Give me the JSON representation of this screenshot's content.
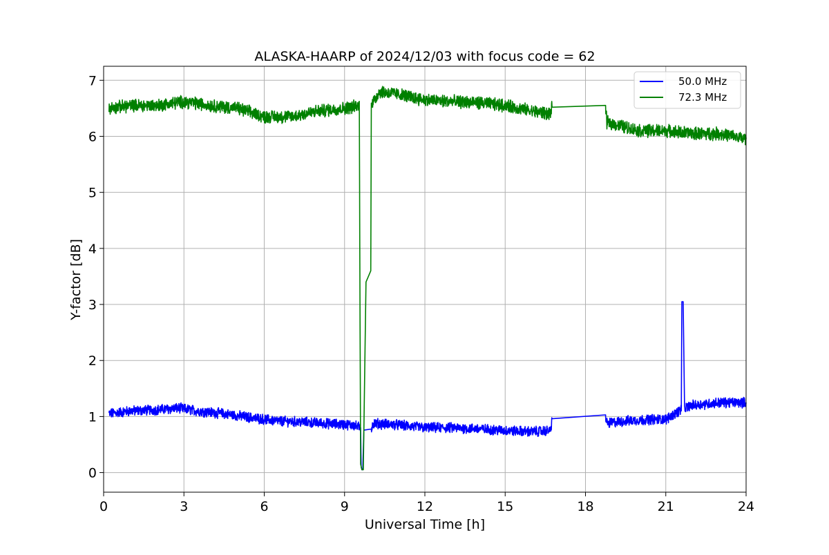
{
  "chart_data": {
    "type": "line",
    "title": "ALASKA-HAARP of 2024/12/03 with focus code = 62",
    "xlabel": "Universal Time [h]",
    "ylabel": "Y-factor [dB]",
    "xlim": [
      0,
      24
    ],
    "ylim": [
      -0.35,
      7.25
    ],
    "xticks": [
      0,
      3,
      6,
      9,
      12,
      15,
      18,
      21,
      24
    ],
    "yticks": [
      0,
      1,
      2,
      3,
      4,
      5,
      6,
      7
    ],
    "grid": true,
    "legend_position": "top-right",
    "series": [
      {
        "name": "50.0 MHz",
        "color": "#0000ff",
        "noise": 0.08,
        "x": [
          0.2,
          1.0,
          2.0,
          2.8,
          3.5,
          4.5,
          5.5,
          6.5,
          7.5,
          8.5,
          9.3,
          9.6,
          9.62,
          9.65,
          9.68,
          9.72,
          9.75,
          10.0,
          10.05,
          11.0,
          12.0,
          13.0,
          14.0,
          15.0,
          16.0,
          16.7,
          16.75,
          18.75,
          18.8,
          19.5,
          20.5,
          21.0,
          21.5,
          21.58,
          21.6,
          21.65,
          21.7,
          22.0,
          23.0,
          24.0
        ],
        "y": [
          1.05,
          1.1,
          1.12,
          1.15,
          1.1,
          1.05,
          0.98,
          0.92,
          0.9,
          0.87,
          0.85,
          0.8,
          0.1,
          0.05,
          0.05,
          0.75,
          0.76,
          0.78,
          0.88,
          0.85,
          0.8,
          0.8,
          0.78,
          0.75,
          0.73,
          0.75,
          0.96,
          0.98,
          0.88,
          0.92,
          0.95,
          0.95,
          1.1,
          1.1,
          3.05,
          3.05,
          1.15,
          1.2,
          1.25,
          1.25
        ],
        "smooth": [
          false,
          false,
          false,
          false,
          false,
          false,
          false,
          false,
          false,
          false,
          false,
          true,
          true,
          true,
          true,
          true,
          true,
          true,
          false,
          false,
          false,
          false,
          false,
          false,
          false,
          false,
          true,
          true,
          false,
          false,
          false,
          false,
          false,
          true,
          true,
          true,
          true,
          false,
          false,
          false
        ]
      },
      {
        "name": "72.3 MHz",
        "color": "#008000",
        "noise": 0.1,
        "x": [
          0.2,
          1.0,
          2.0,
          3.0,
          4.0,
          5.0,
          6.0,
          7.0,
          8.0,
          9.0,
          9.55,
          9.6,
          9.65,
          9.7,
          9.8,
          9.98,
          10.0,
          10.05,
          10.3,
          11.0,
          12.0,
          13.0,
          14.0,
          15.0,
          16.0,
          16.7,
          16.75,
          18.75,
          18.8,
          20.0,
          21.0,
          22.0,
          23.0,
          24.0
        ],
        "y": [
          6.5,
          6.55,
          6.55,
          6.62,
          6.55,
          6.5,
          6.35,
          6.35,
          6.45,
          6.5,
          6.55,
          0.15,
          0.05,
          0.05,
          3.4,
          3.6,
          6.65,
          6.6,
          6.8,
          6.75,
          6.65,
          6.62,
          6.6,
          6.55,
          6.45,
          6.4,
          6.52,
          6.52,
          6.25,
          6.1,
          6.1,
          6.05,
          6.05,
          5.95
        ],
        "smooth": [
          false,
          false,
          false,
          false,
          false,
          false,
          false,
          false,
          false,
          false,
          false,
          true,
          true,
          true,
          true,
          true,
          true,
          false,
          false,
          false,
          false,
          false,
          false,
          false,
          false,
          false,
          true,
          true,
          false,
          false,
          false,
          false,
          false,
          false
        ]
      }
    ]
  }
}
